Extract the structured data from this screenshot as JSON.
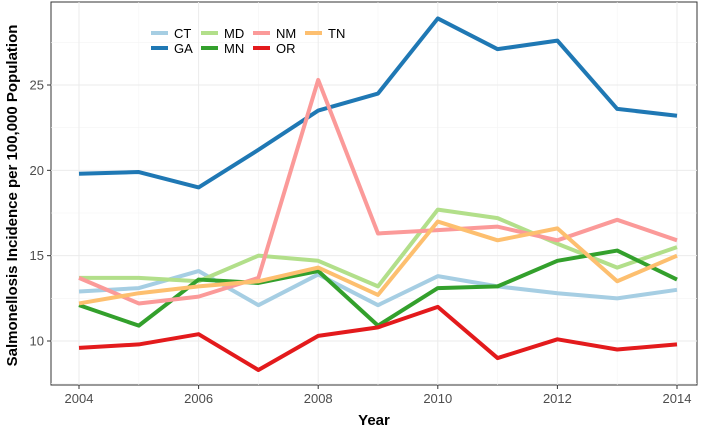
{
  "chart_data": {
    "type": "line",
    "xlabel": "Year",
    "ylabel": "Salmonellosis Incidence per 100,000 Population",
    "x": [
      2004,
      2005,
      2006,
      2007,
      2008,
      2009,
      2010,
      2011,
      2012,
      2013,
      2014
    ],
    "xlim": [
      2004,
      2014
    ],
    "ylim": [
      7.5,
      29.5
    ],
    "x_ticks": [
      2004,
      2006,
      2008,
      2010,
      2012,
      2014
    ],
    "y_ticks": [
      10,
      15,
      20,
      25
    ],
    "grid": true,
    "legend_position": "top-left",
    "series": [
      {
        "name": "CT",
        "color": "#A6CEE3",
        "values": [
          12.9,
          13.1,
          14.1,
          12.1,
          13.9,
          12.1,
          13.8,
          13.2,
          12.8,
          12.5,
          13.0
        ]
      },
      {
        "name": "GA",
        "color": "#1F78B4",
        "values": [
          19.8,
          19.9,
          19.0,
          21.2,
          23.5,
          24.5,
          28.9,
          27.1,
          27.6,
          23.6,
          23.2
        ]
      },
      {
        "name": "MD",
        "color": "#B2DF8A",
        "values": [
          13.7,
          13.7,
          13.5,
          15.0,
          14.7,
          13.2,
          17.7,
          17.2,
          15.7,
          14.3,
          15.5
        ]
      },
      {
        "name": "MN",
        "color": "#33A02C",
        "values": [
          12.1,
          10.9,
          13.6,
          13.4,
          14.1,
          10.9,
          13.1,
          13.2,
          14.7,
          15.3,
          13.6
        ]
      },
      {
        "name": "NM",
        "color": "#FB9A99",
        "values": [
          13.7,
          12.2,
          12.6,
          13.7,
          25.3,
          16.3,
          16.5,
          16.7,
          15.9,
          17.1,
          15.9
        ]
      },
      {
        "name": "OR",
        "color": "#E31A1C",
        "values": [
          9.6,
          9.8,
          10.4,
          8.3,
          10.3,
          10.8,
          12.0,
          9.0,
          10.1,
          9.5,
          9.8
        ]
      },
      {
        "name": "TN",
        "color": "#FDBF6F",
        "values": [
          12.2,
          12.8,
          13.2,
          13.5,
          14.3,
          12.7,
          17.0,
          15.9,
          16.6,
          13.5,
          15.0
        ]
      }
    ]
  }
}
